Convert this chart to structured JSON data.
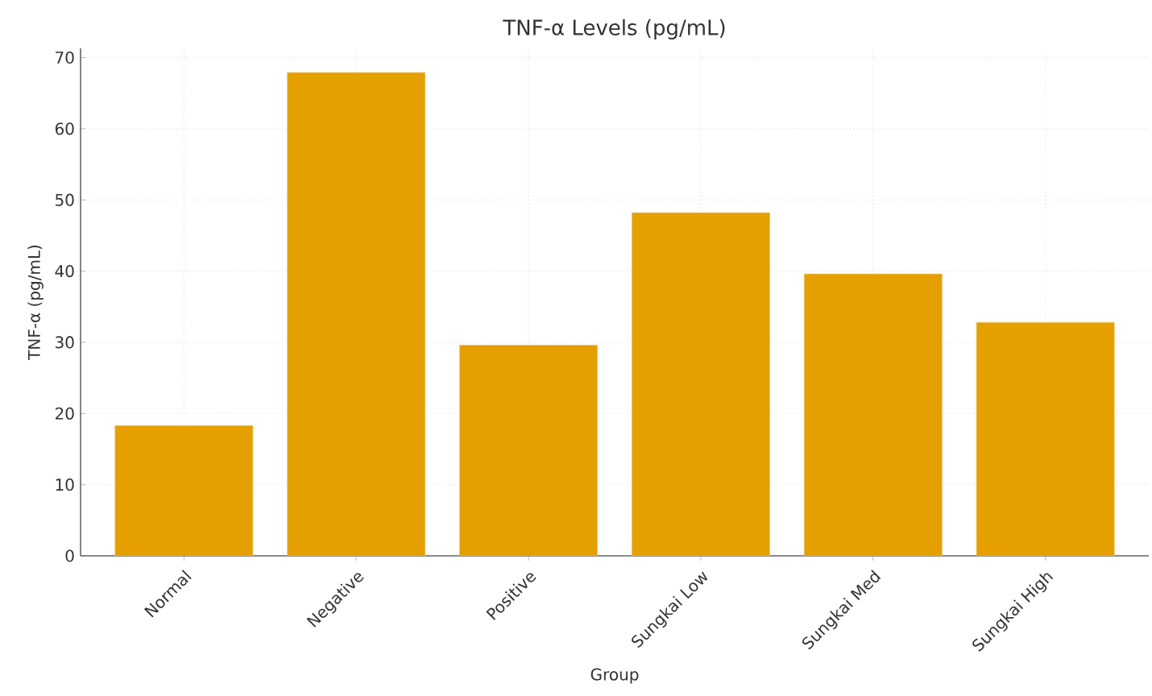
{
  "chart_data": {
    "type": "bar",
    "title": "TNF-α Levels (pg/mL)",
    "xlabel": "Group",
    "ylabel": "TNF-α (pg/mL)",
    "categories": [
      "Normal",
      "Negative",
      "Positive",
      "Sungkai Low",
      "Sungkai Med",
      "Sungkai High"
    ],
    "values": [
      18.3,
      67.9,
      29.6,
      48.2,
      39.6,
      32.8
    ],
    "color": "#e49f00",
    "ylim": [
      0,
      71.3
    ],
    "yticks": [
      0,
      10,
      20,
      30,
      40,
      50,
      60,
      70
    ],
    "grid": true
  }
}
